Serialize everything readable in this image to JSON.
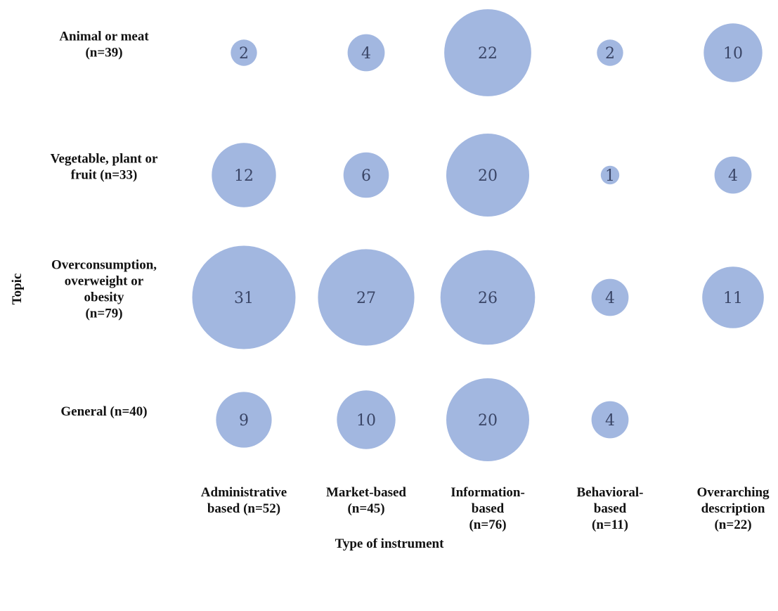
{
  "chart_data": {
    "type": "bubble",
    "xlabel": "Type of instrument",
    "ylabel": "Topic",
    "categories_x": [
      [
        "Administrative",
        "based (n=52)"
      ],
      [
        "Market-based",
        "(n=45)"
      ],
      [
        "Information-",
        "based",
        "(n=76)"
      ],
      [
        "Behavioral-",
        "based",
        "(n=11)"
      ],
      [
        "Overarching",
        "description",
        "(n=22)"
      ]
    ],
    "categories_y": [
      [
        "Animal or meat",
        "(n=39)"
      ],
      [
        "Vegetable, plant or",
        "fruit (n=33)"
      ],
      [
        "Overconsumption,",
        "overweight or",
        "obesity",
        "(n=79)"
      ],
      [
        "General (n=40)"
      ]
    ],
    "values": [
      [
        2,
        4,
        22,
        2,
        10
      ],
      [
        12,
        6,
        20,
        1,
        4
      ],
      [
        31,
        27,
        26,
        4,
        11
      ],
      [
        9,
        10,
        20,
        4,
        null
      ]
    ],
    "bubble_color": "#a2b7e0",
    "label_color": "#3a4566"
  }
}
